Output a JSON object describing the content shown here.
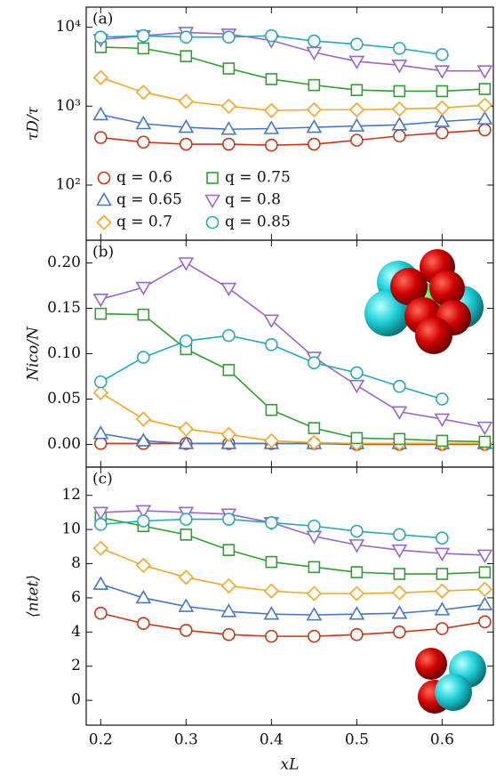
{
  "chart_data": [
    {
      "type": "line",
      "panel_label": "(a)",
      "ylabel": "τD/τ",
      "log_y": true,
      "legend": "lower left",
      "x": [
        0.2,
        0.25,
        0.3,
        0.35,
        0.4,
        0.45,
        0.5,
        0.55,
        0.6,
        0.65
      ],
      "xlim": [
        0.183,
        0.66
      ],
      "xticks": [
        0.2,
        0.3,
        0.4,
        0.5,
        0.6
      ],
      "ylim": [
        20,
        18000
      ],
      "yticks": [
        {
          "value": 100,
          "label": "10²"
        },
        {
          "value": 1000,
          "label": "10³"
        },
        {
          "value": 10000,
          "label": "10⁴"
        }
      ],
      "series": [
        {
          "name": "q = 0.6",
          "color": "#cc3311",
          "marker": "circle",
          "values": [
            400,
            350,
            330,
            330,
            320,
            330,
            370,
            420,
            460,
            500
          ]
        },
        {
          "name": "q = 0.65",
          "color": "#4477cc",
          "marker": "triangle-up",
          "values": [
            780,
            600,
            540,
            510,
            520,
            540,
            560,
            580,
            640,
            690
          ]
        },
        {
          "name": "q = 0.7",
          "color": "#f5a623",
          "marker": "diamond",
          "values": [
            2300,
            1500,
            1150,
            1000,
            880,
            900,
            900,
            920,
            950,
            1030
          ]
        },
        {
          "name": "q = 0.75",
          "color": "#2ca02c",
          "marker": "square",
          "values": [
            5600,
            5400,
            4300,
            3000,
            2200,
            1850,
            1600,
            1550,
            1550,
            1650
          ]
        },
        {
          "name": "q = 0.8",
          "color": "#9966cc",
          "marker": "triangle-down",
          "values": [
            7000,
            7800,
            8600,
            8200,
            6800,
            4800,
            3700,
            3300,
            2800,
            2800
          ]
        },
        {
          "name": "q = 0.85",
          "color": "#22aabb",
          "marker": "circle",
          "values": [
            7500,
            7800,
            7500,
            7500,
            7800,
            6700,
            6100,
            5400,
            4500,
            null
          ]
        }
      ]
    },
    {
      "type": "line",
      "panel_label": "(b)",
      "ylabel": "Nico/N",
      "x": [
        0.2,
        0.25,
        0.3,
        0.35,
        0.4,
        0.45,
        0.5,
        0.55,
        0.6,
        0.65
      ],
      "xlim": [
        0.183,
        0.66
      ],
      "xticks": [
        0.2,
        0.3,
        0.4,
        0.5,
        0.6
      ],
      "ylim": [
        -0.025,
        0.225
      ],
      "yticks": [
        {
          "value": 0,
          "label": "0.00"
        },
        {
          "value": 0.05,
          "label": "0.05"
        },
        {
          "value": 0.1,
          "label": "0.10"
        },
        {
          "value": 0.15,
          "label": "0.15"
        },
        {
          "value": 0.2,
          "label": "0.20"
        }
      ],
      "series": [
        {
          "name": "q = 0.6",
          "color": "#cc3311",
          "marker": "circle",
          "values": [
            0.001,
            0.001,
            0.001,
            0.001,
            0.001,
            0.001,
            0,
            0,
            0,
            0
          ]
        },
        {
          "name": "q = 0.65",
          "color": "#4477cc",
          "marker": "triangle-up",
          "values": [
            0.012,
            0.004,
            0.001,
            0.001,
            0.001,
            0.001,
            0.001,
            0.001,
            0.001,
            0.001
          ]
        },
        {
          "name": "q = 0.7",
          "color": "#f5a623",
          "marker": "diamond",
          "values": [
            0.057,
            0.028,
            0.017,
            0.011,
            0.004,
            0.002,
            0.001,
            0.001,
            0.001,
            0.001
          ]
        },
        {
          "name": "q = 0.75",
          "color": "#2ca02c",
          "marker": "square",
          "values": [
            0.144,
            0.143,
            0.105,
            0.082,
            0.038,
            0.018,
            0.007,
            0.006,
            0.004,
            0.003
          ]
        },
        {
          "name": "q = 0.8",
          "color": "#9966cc",
          "marker": "triangle-down",
          "values": [
            0.16,
            0.173,
            0.2,
            0.172,
            0.137,
            0.096,
            0.065,
            0.036,
            0.028,
            0.019
          ]
        },
        {
          "name": "q = 0.85",
          "color": "#22aabb",
          "marker": "circle",
          "values": [
            0.069,
            0.096,
            0.114,
            0.12,
            0.11,
            0.09,
            0.079,
            0.064,
            0.05,
            null
          ]
        }
      ]
    },
    {
      "type": "line",
      "panel_label": "(c)",
      "ylabel": "⟨ntet⟩",
      "xlabel": "xL",
      "x": [
        0.2,
        0.25,
        0.3,
        0.35,
        0.4,
        0.45,
        0.5,
        0.55,
        0.6,
        0.65
      ],
      "xlim": [
        0.183,
        0.66
      ],
      "xticks": [
        0.2,
        0.3,
        0.4,
        0.5,
        0.6
      ],
      "ylim": [
        -1.45,
        13.65
      ],
      "yticks": [
        0,
        2,
        4,
        6,
        8,
        10,
        12
      ],
      "series": [
        {
          "name": "q = 0.6",
          "color": "#cc3311",
          "marker": "circle",
          "values": [
            5.1,
            4.5,
            4.1,
            3.85,
            3.75,
            3.75,
            3.85,
            4.0,
            4.2,
            4.6
          ]
        },
        {
          "name": "q = 0.65",
          "color": "#4477cc",
          "marker": "triangle-up",
          "values": [
            6.8,
            6.0,
            5.5,
            5.2,
            5.05,
            5.0,
            5.05,
            5.1,
            5.3,
            5.6
          ]
        },
        {
          "name": "q = 0.7",
          "color": "#f5a623",
          "marker": "diamond",
          "values": [
            8.9,
            7.9,
            7.2,
            6.7,
            6.4,
            6.25,
            6.25,
            6.3,
            6.4,
            6.5
          ]
        },
        {
          "name": "q = 0.75",
          "color": "#2ca02c",
          "marker": "square",
          "values": [
            10.7,
            10.2,
            9.7,
            8.8,
            8.1,
            7.8,
            7.5,
            7.4,
            7.4,
            7.5
          ]
        },
        {
          "name": "q = 0.8",
          "color": "#9966cc",
          "marker": "triangle-down",
          "values": [
            11.0,
            11.1,
            11.0,
            10.9,
            10.4,
            9.6,
            9.1,
            8.8,
            8.6,
            8.5
          ]
        },
        {
          "name": "q = 0.85",
          "color": "#22aabb",
          "marker": "circle",
          "values": [
            10.3,
            10.5,
            10.6,
            10.6,
            10.4,
            10.2,
            9.9,
            9.7,
            9.5,
            null
          ]
        }
      ]
    }
  ]
}
